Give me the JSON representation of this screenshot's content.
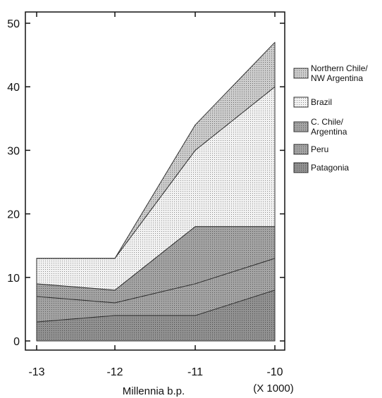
{
  "chart_data": {
    "type": "area",
    "stacked": true,
    "x": [
      -13,
      -12,
      -11,
      -10
    ],
    "xticks": [
      "-13",
      "-12",
      "-11",
      "-10"
    ],
    "yticks": [
      "0",
      "10",
      "20",
      "30",
      "40",
      "50"
    ],
    "xlabel": "Millennia b.p.",
    "x_multiplier_label": "(X 1000)",
    "ylabel": "",
    "ylim": [
      0,
      50
    ],
    "xlim": [
      -13,
      -10
    ],
    "grid": false,
    "legend_position": "right",
    "series": [
      {
        "name": "Patagonia",
        "values": [
          3,
          4,
          4,
          8
        ],
        "color": "#8c8c8c",
        "pattern": "dots-dark"
      },
      {
        "name": "Peru",
        "values": [
          4,
          2,
          5,
          5
        ],
        "color": "#9a9a9a",
        "pattern": "dots-mid"
      },
      {
        "name": "C. Chile/\nArgentina",
        "values": [
          2,
          2,
          9,
          5
        ],
        "color": "#a3a3a3",
        "pattern": "dots-mid"
      },
      {
        "name": "Brazil",
        "values": [
          4,
          5,
          12,
          22
        ],
        "color": "#ececec",
        "pattern": "dots-light"
      },
      {
        "name": "Northern Chile/\nNW Argentina",
        "values": [
          0,
          0,
          4,
          7
        ],
        "color": "#c4c4c4",
        "pattern": "dots-medlight"
      }
    ],
    "legend_order": [
      "Northern Chile/\nNW Argentina",
      "Brazil",
      "C. Chile/\nArgentina",
      "Peru",
      "Patagonia"
    ]
  }
}
